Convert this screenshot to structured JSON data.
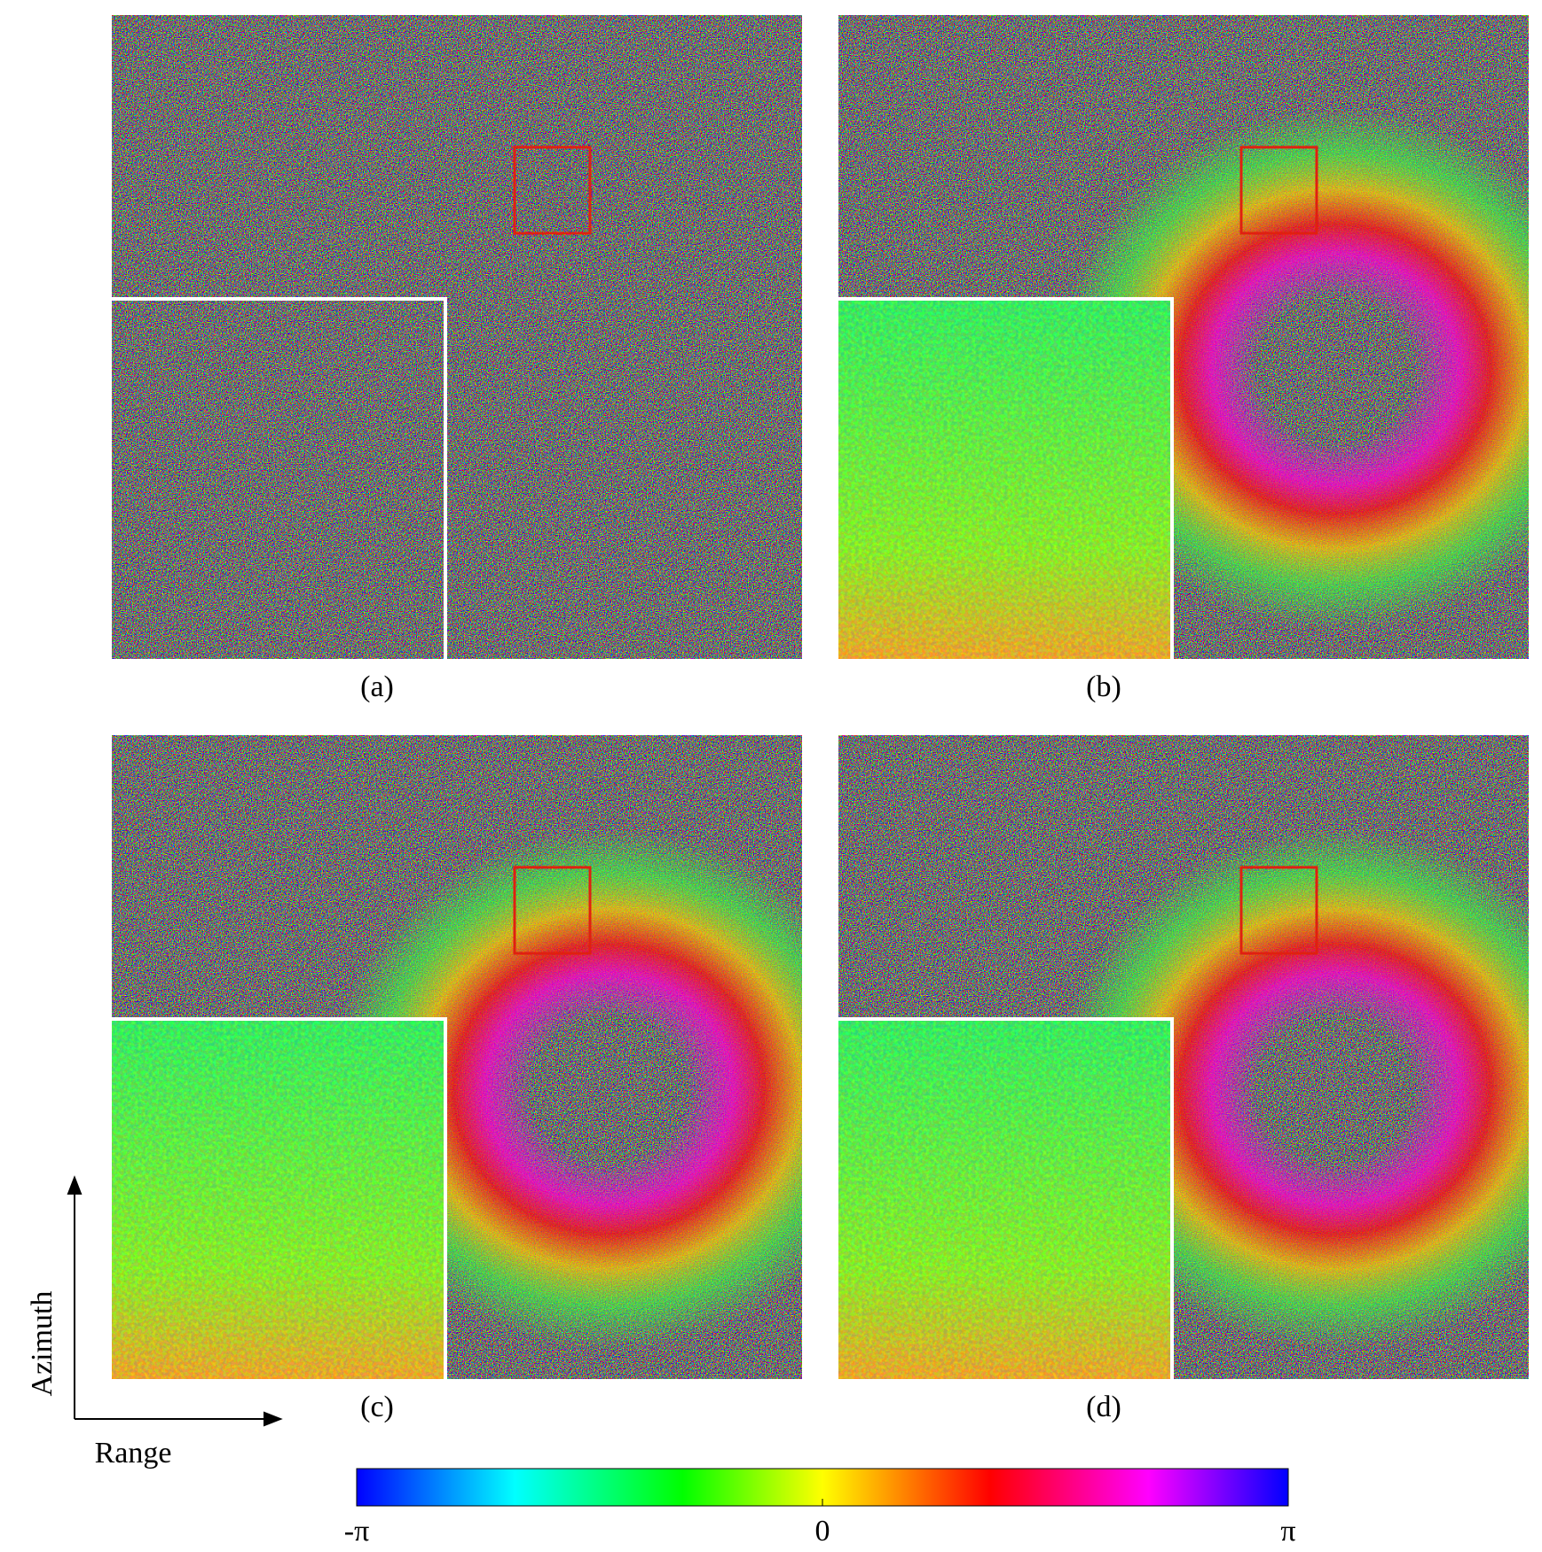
{
  "panels": [
    {
      "label": "(a)"
    },
    {
      "label": "(b)"
    },
    {
      "label": "(c)"
    },
    {
      "label": "(d)"
    }
  ],
  "axes": {
    "vertical": "Azimuth",
    "horizontal": "Range"
  },
  "colorbar": {
    "lim": [
      -3.14159,
      3.14159
    ],
    "ticks": [
      {
        "value": -3.14159,
        "label": "-π"
      },
      0,
      {
        "value": 3.14159,
        "label": "π"
      }
    ]
  }
}
